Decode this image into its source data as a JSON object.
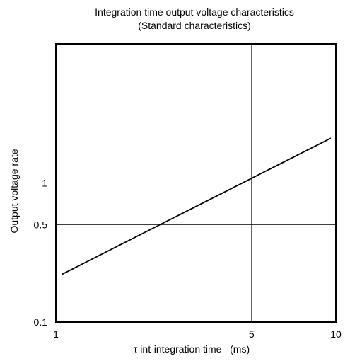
{
  "chart_data": {
    "type": "line",
    "title": "Integration time output voltage characteristics",
    "subtitle": "(Standard characteristics)",
    "xlabel": "τ int-integration time   (ms)",
    "ylabel": "Output voltage rate",
    "xscale": "log",
    "yscale": "log",
    "xlim": [
      1,
      10
    ],
    "ylim": [
      0.1,
      10
    ],
    "x_ticks": [
      {
        "value": 1,
        "label": "1"
      },
      {
        "value": 5,
        "label": "5"
      },
      {
        "value": 10,
        "label": "10"
      }
    ],
    "y_ticks": [
      {
        "value": 0.1,
        "label": "0.1"
      },
      {
        "value": 0.5,
        "label": "0.5"
      },
      {
        "value": 1,
        "label": "1"
      }
    ],
    "grid": {
      "x": [
        5
      ],
      "y": [
        0.5,
        1
      ]
    },
    "legend": "none",
    "series": [
      {
        "points": [
          {
            "x": 1.05,
            "y": 0.22
          },
          {
            "x": 9.6,
            "y": 2.1
          }
        ],
        "color": "#000000"
      }
    ]
  }
}
